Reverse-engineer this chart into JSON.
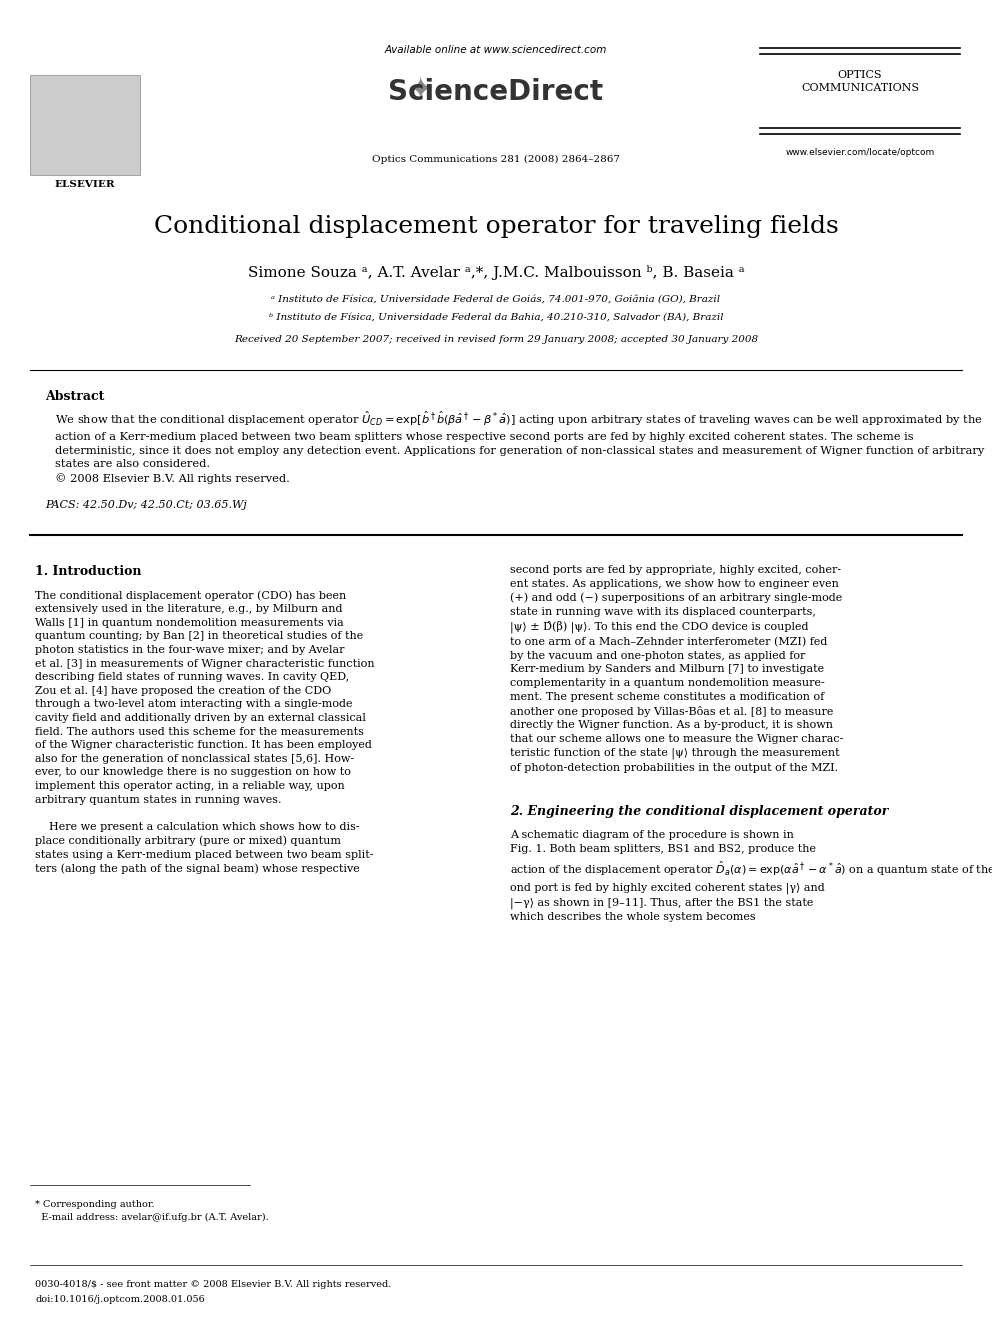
{
  "bg_color": "#ffffff",
  "title": "Conditional displacement operator for traveling fields",
  "authors": "Simone Souza ᵃ, A.T. Avelar ᵃ,*, J.M.C. Malbouisson ᵇ, B. Baseia ᵃ",
  "affil_a": "ᵃ Instituto de Física, Universidade Federal de Goiás, 74.001-970, Goiânia (GO), Brazil",
  "affil_b": "ᵇ Instituto de Física, Universidade Federal da Bahia, 40.210-310, Salvador (BA), Brazil",
  "received": "Received 20 September 2007; received in revised form 29 January 2008; accepted 30 January 2008",
  "journal_header": "Optics Communications 281 (2008) 2864–2867",
  "available": "Available online at www.sciencedirect.com",
  "optics_comm": "OPTICS\nCOMMUNICATIONS",
  "elsevier": "ELSEVIER",
  "website": "www.elsevier.com/locate/optcom",
  "abstract_label": "Abstract",
  "abstract_text": "We show that the conditional displacement operator Ô₀₁ = exp[βˆ†β̂(βα† − β*α̂)] acting upon arbitrary states of traveling waves can be well approximated by the action of a Kerr-medium placed between two beam splitters whose respective second ports are fed by highly excited coherent states. The scheme is deterministic, since it does not employ any detection event. Applications for generation of non-classical states and measurement of Wigner function of arbitrary states are also considered.\n© 2008 Elsevier B.V. All rights reserved.",
  "pacs": "PACS: 42.50.Dv; 42.50.Ct; 03.65.Wj",
  "section1_title": "1. Introduction",
  "section1_left": "The conditional displacement operator (CDO) has been extensively used in the literature, e.g., by Milburn and Walls [1] in quantum nondemolition measurements via quantum counting; by Ban [2] in theoretical studies of the photon statistics in the four-wave mixer; and by Avelar et al. [3] in measurements of Wigner characteristic function describing field states of running waves. In cavity QED, Zou et al. [4] have proposed the creation of the CDO through a two-level atom interacting with a single-mode cavity field and additionally driven by an external classical field. The authors used this scheme for the measurements of the Wigner characteristic function. It has been employed also for the generation of nonclassical states [5,6]. However, to our knowledge there is no suggestion on how to implement this operator acting, in a reliable way, upon arbitrary quantum states in running waves.\n\n    Here we present a calculation which shows how to displace conditionally arbitrary (pure or mixed) quantum states using a Kerr-medium placed between two beam splitters (along the path of the signal beam) whose respective",
  "section1_right": "second ports are fed by appropriate, highly excited, coherent states. As applications, we show how to engineer even (+) and odd (−) superpositions of an arbitrary single-mode state in running wave with its displaced counterparts, |ψ⟩ ± D̂(β) |ψ⟩. To this end the CDO device is coupled to one arm of a Mach–Zehnder interferometer (MZI) fed by the vacuum and one-photon states, as applied for Kerr-medium by Sanders and Milburn [7] to investigate complementarity in a quantum nondemolition measurement. The present scheme constitutes a modification of another one proposed by Villas-Bôas et al. [8] to measure directly the Wigner function. As a by-product, it is shown that our scheme allows one to measure the Wigner characteristic function of the state |ψ⟩ through the measurement of photon-detection probabilities in the output of the MZI.",
  "section2_title": "2. Engineering the conditional displacement operator",
  "section2_text": "A schematic diagram of the procedure is shown in Fig. 1. Both beam splitters, BS1 and BS2, produce the action of the displacement operator D̂ₐ(α) = exp(αα†−α*α̂) on a quantum state of the field-mode a, when the second port is fed by highly excited coherent states |γ⟩ and |−γ⟩ as shown in [9–11]. Thus, after the BS1 the state which describes the whole system becomes",
  "footnote_corresponding": "* Corresponding author.\n  E-mail address: avelar@if.ufg.br (A.T. Avelar).",
  "footer_text": "0030-4018/$ - see front matter © 2008 Elsevier B.V. All rights reserved.\ndoi:10.1016/j.optcom.2008.01.056"
}
